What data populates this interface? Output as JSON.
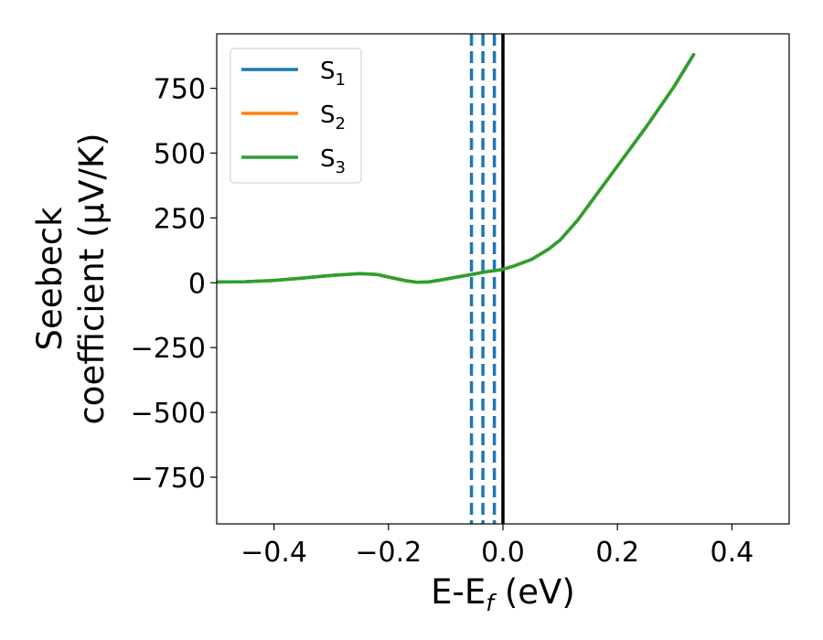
{
  "chart_data": {
    "type": "line",
    "xlabel": "E-E",
    "xlabel_sub": "f",
    "xlabel_unit": " (eV)",
    "ylabel_line1": "Seebeck",
    "ylabel_line2": "coefficient  (μV/K)",
    "xlim": [
      -0.5,
      0.5
    ],
    "ylim": [
      -930,
      960
    ],
    "xticks": [
      -0.4,
      -0.2,
      0.0,
      0.2,
      0.4
    ],
    "xtick_labels": [
      "−0.4",
      "−0.2",
      "0.0",
      "0.2",
      "0.4"
    ],
    "yticks": [
      750,
      500,
      250,
      0,
      -250,
      -500,
      -750
    ],
    "ytick_labels": [
      "750",
      "500",
      "250",
      "0",
      "−250",
      "−500",
      "−750"
    ],
    "grid": false,
    "legend_position": "top-left",
    "series": [
      {
        "name": "S",
        "name_sub": "1",
        "color": "#1f77b4",
        "x": [
          -0.5,
          -0.45,
          -0.4,
          -0.35,
          -0.3,
          -0.25,
          -0.22,
          -0.2,
          -0.17,
          -0.15,
          -0.13,
          -0.11,
          -0.09,
          -0.07,
          -0.05,
          -0.03,
          -0.01,
          0.0,
          0.02,
          0.05,
          0.08,
          0.1,
          0.13,
          0.16,
          0.2,
          0.25,
          0.3,
          0.333
        ],
        "y": [
          3,
          4,
          9,
          18,
          28,
          35,
          32,
          22,
          8,
          2,
          3,
          10,
          18,
          26,
          34,
          42,
          48,
          52,
          65,
          90,
          130,
          165,
          240,
          330,
          450,
          600,
          760,
          880
        ]
      },
      {
        "name": "S",
        "name_sub": "2",
        "color": "#ff7f0e",
        "x": [
          -0.5,
          -0.45,
          -0.4,
          -0.35,
          -0.3,
          -0.25,
          -0.22,
          -0.2,
          -0.17,
          -0.15,
          -0.13,
          -0.11,
          -0.09,
          -0.07,
          -0.05,
          -0.03,
          -0.01,
          0.0,
          0.02,
          0.05,
          0.08,
          0.1,
          0.13,
          0.16,
          0.2,
          0.25,
          0.3,
          0.333
        ],
        "y": [
          3,
          4,
          9,
          18,
          28,
          35,
          32,
          22,
          8,
          2,
          3,
          10,
          18,
          26,
          34,
          42,
          48,
          52,
          65,
          90,
          130,
          165,
          240,
          330,
          450,
          600,
          760,
          880
        ]
      },
      {
        "name": "S",
        "name_sub": "3",
        "color": "#2ca02c",
        "x": [
          -0.5,
          -0.45,
          -0.4,
          -0.35,
          -0.3,
          -0.25,
          -0.22,
          -0.2,
          -0.17,
          -0.15,
          -0.13,
          -0.11,
          -0.09,
          -0.07,
          -0.05,
          -0.03,
          -0.01,
          0.0,
          0.02,
          0.05,
          0.08,
          0.1,
          0.13,
          0.16,
          0.2,
          0.25,
          0.3,
          0.333
        ],
        "y": [
          3,
          4,
          9,
          18,
          28,
          35,
          32,
          22,
          8,
          2,
          3,
          10,
          18,
          26,
          34,
          42,
          48,
          52,
          65,
          90,
          130,
          165,
          240,
          330,
          450,
          600,
          760,
          880
        ]
      }
    ],
    "vertical_lines": [
      {
        "x": -0.055,
        "style": "dashed",
        "color": "#1f77b4"
      },
      {
        "x": -0.035,
        "style": "dashed",
        "color": "#1f77b4"
      },
      {
        "x": -0.015,
        "style": "dashed",
        "color": "#1f77b4"
      },
      {
        "x": 0.0,
        "style": "solid",
        "color": "#000000"
      }
    ]
  }
}
